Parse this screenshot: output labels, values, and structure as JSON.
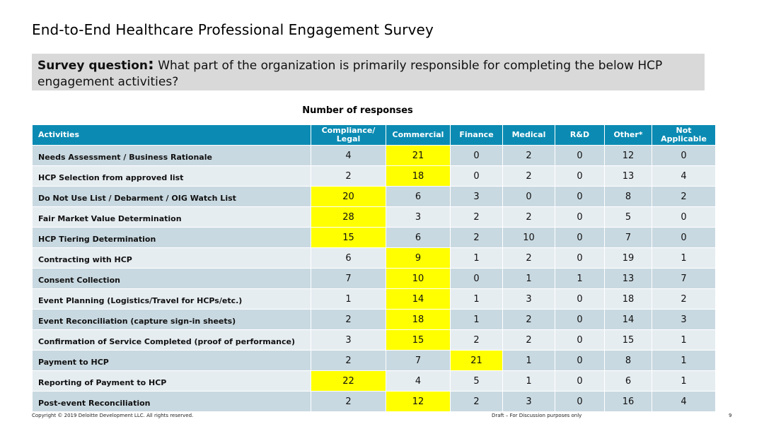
{
  "title": "End-to-End Healthcare Professional Engagement Survey",
  "question": {
    "label": "Survey question",
    "colon": ":",
    "text": " What part of the organization is primarily responsible for completing the below HCP engagement activities?"
  },
  "caption": "Number of responses",
  "table": {
    "headers": [
      "Activities",
      "Compliance/ Legal",
      "Commercial",
      "Finance",
      "Medical",
      "R&D",
      "Other*",
      "Not Applicable"
    ],
    "highlight_color": "#ffff00",
    "header_color": "#0b8bb3",
    "rows": [
      {
        "activity": "Needs Assessment / Business Rationale",
        "values": [
          "4",
          "21",
          "0",
          "2",
          "0",
          "12",
          "0"
        ],
        "highlight": 1
      },
      {
        "activity": "HCP Selection from approved list",
        "values": [
          "2",
          "18",
          "0",
          "2",
          "0",
          "13",
          "4"
        ],
        "highlight": 1
      },
      {
        "activity": "Do Not Use List / Debarment / OIG Watch List",
        "values": [
          "20",
          "6",
          "3",
          "0",
          "0",
          "8",
          "2"
        ],
        "highlight": 0
      },
      {
        "activity": "Fair Market Value Determination",
        "values": [
          "28",
          "3",
          "2",
          "2",
          "0",
          "5",
          "0"
        ],
        "highlight": 0
      },
      {
        "activity": "HCP Tiering Determination",
        "values": [
          "15",
          "6",
          "2",
          "10",
          "0",
          "7",
          "0"
        ],
        "highlight": 0
      },
      {
        "activity": "Contracting with HCP",
        "values": [
          "6",
          "9",
          "1",
          "2",
          "0",
          "19",
          "1"
        ],
        "highlight": 1
      },
      {
        "activity": "Consent Collection",
        "values": [
          "7",
          "10",
          "0",
          "1",
          "1",
          "13",
          "7"
        ],
        "highlight": 1
      },
      {
        "activity": "Event Planning (Logistics/Travel for HCPs/etc.)",
        "values": [
          "1",
          "14",
          "1",
          "3",
          "0",
          "18",
          "2"
        ],
        "highlight": 1
      },
      {
        "activity": "Event Reconciliation (capture sign-in sheets)",
        "values": [
          "2",
          "18",
          "1",
          "2",
          "0",
          "14",
          "3"
        ],
        "highlight": 1
      },
      {
        "activity": "Confirmation of Service Completed (proof of performance)",
        "values": [
          "3",
          "15",
          "2",
          "2",
          "0",
          "15",
          "1"
        ],
        "highlight": 1
      },
      {
        "activity": "Payment to HCP",
        "values": [
          "2",
          "7",
          "21",
          "1",
          "0",
          "8",
          "1"
        ],
        "highlight": 2
      },
      {
        "activity": "Reporting of Payment to HCP",
        "values": [
          "22",
          "4",
          "5",
          "1",
          "0",
          "6",
          "1"
        ],
        "highlight": 0
      },
      {
        "activity": "Post-event Reconciliation",
        "values": [
          "2",
          "12",
          "2",
          "3",
          "0",
          "16",
          "4"
        ],
        "highlight": 1
      }
    ]
  },
  "footer": {
    "copyright": "Copyright © 2019 Deloitte Development LLC. All rights reserved.",
    "draft": "Draft – For Discussion purposes only",
    "page": "9"
  }
}
